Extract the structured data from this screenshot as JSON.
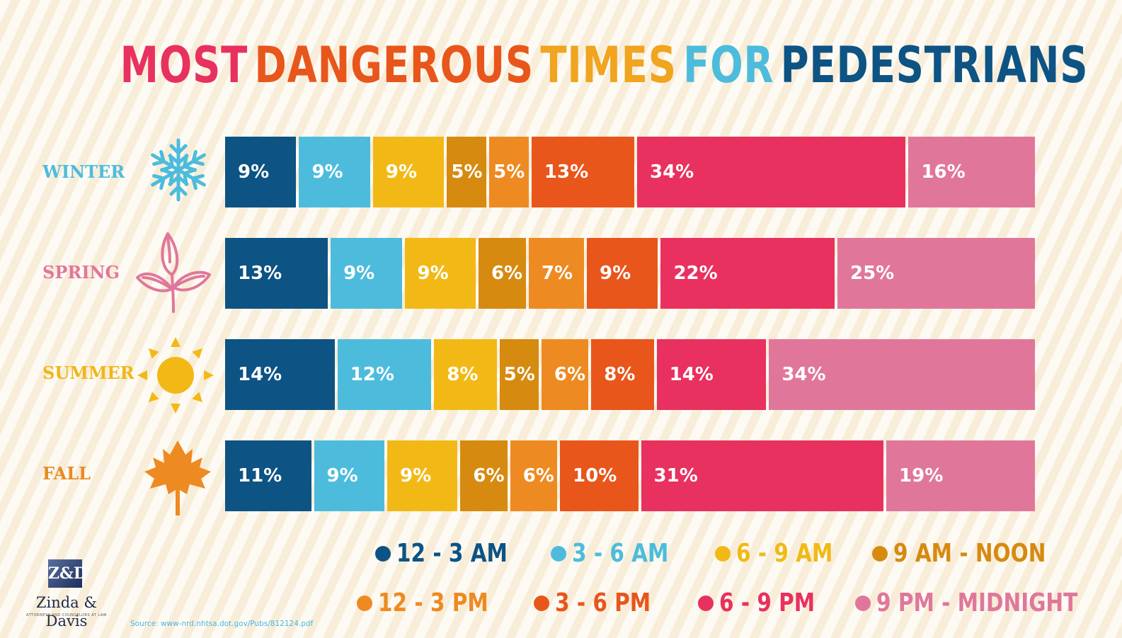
{
  "title": {
    "words": [
      {
        "text": "MOST",
        "color": "#e8315f"
      },
      {
        "text": "DANGEROUS",
        "color": "#e8561c"
      },
      {
        "text": "TIMES",
        "color": "#f0a41f"
      },
      {
        "text": "FOR",
        "color": "#4dbcdc"
      },
      {
        "text": "PEDESTRIANS",
        "color": "#0d5384"
      }
    ]
  },
  "seasons": [
    {
      "label": "WINTER",
      "color": "#4dbcdc",
      "icon": "snowflake-icon"
    },
    {
      "label": "SPRING",
      "color": "#e0779a",
      "icon": "leaves-icon"
    },
    {
      "label": "SUMMER",
      "color": "#f0b619",
      "icon": "sun-icon"
    },
    {
      "label": "FALL",
      "color": "#e98a22",
      "icon": "maple-leaf-icon"
    }
  ],
  "chart_data": {
    "type": "bar",
    "stacked": true,
    "orientation": "horizontal",
    "title": "MOST DANGEROUS TIMES FOR PEDESTRIANS",
    "categories": [
      "WINTER",
      "SPRING",
      "SUMMER",
      "FALL"
    ],
    "series": [
      {
        "name": "12 - 3 AM",
        "color": "#0d5384",
        "values": [
          9,
          13,
          14,
          11
        ],
        "labels": [
          "9%",
          "13%",
          "14%",
          "11%"
        ]
      },
      {
        "name": "3 - 6 AM",
        "color": "#4dbcdc",
        "values": [
          9,
          9,
          12,
          9
        ],
        "labels": [
          "9%",
          "9%",
          "12%",
          "9%"
        ]
      },
      {
        "name": "6 - 9 AM",
        "color": "#f2b916",
        "values": [
          9,
          9,
          8,
          9
        ],
        "labels": [
          "9%",
          "9%",
          "8%",
          "9%"
        ]
      },
      {
        "name": "9 AM - NOON",
        "color": "#d68a10",
        "values": [
          5,
          6,
          5,
          6
        ],
        "labels": [
          "5%",
          "6%",
          "5%",
          "6%"
        ]
      },
      {
        "name": "12 - 3 PM",
        "color": "#ee8a22",
        "values": [
          5,
          7,
          6,
          6
        ],
        "labels": [
          "5%",
          "7%",
          "6%",
          "6%"
        ]
      },
      {
        "name": "3 - 6 PM",
        "color": "#e8561c",
        "values": [
          13,
          9,
          8,
          10
        ],
        "labels": [
          "13%",
          "9%",
          "8%",
          "10%"
        ]
      },
      {
        "name": "6 - 9 PM",
        "color": "#e8315f",
        "values": [
          34,
          22,
          14,
          31
        ],
        "labels": [
          "34%",
          "22%",
          "14%",
          "31%"
        ]
      },
      {
        "name": "9 PM - MIDNIGHT",
        "color": "#e0779a",
        "values": [
          16,
          25,
          34,
          19
        ],
        "labels": [
          "16%",
          "25%",
          "34%",
          "19%"
        ]
      }
    ]
  },
  "logo": {
    "mark": "Z&D",
    "name": "Zinda & Davis",
    "tagline": "ATTORNEYS AND COUNSELORS AT LAW"
  },
  "source": "Source: www-nrd.nhtsa.dot.gov/Pubs/812124.pdf"
}
